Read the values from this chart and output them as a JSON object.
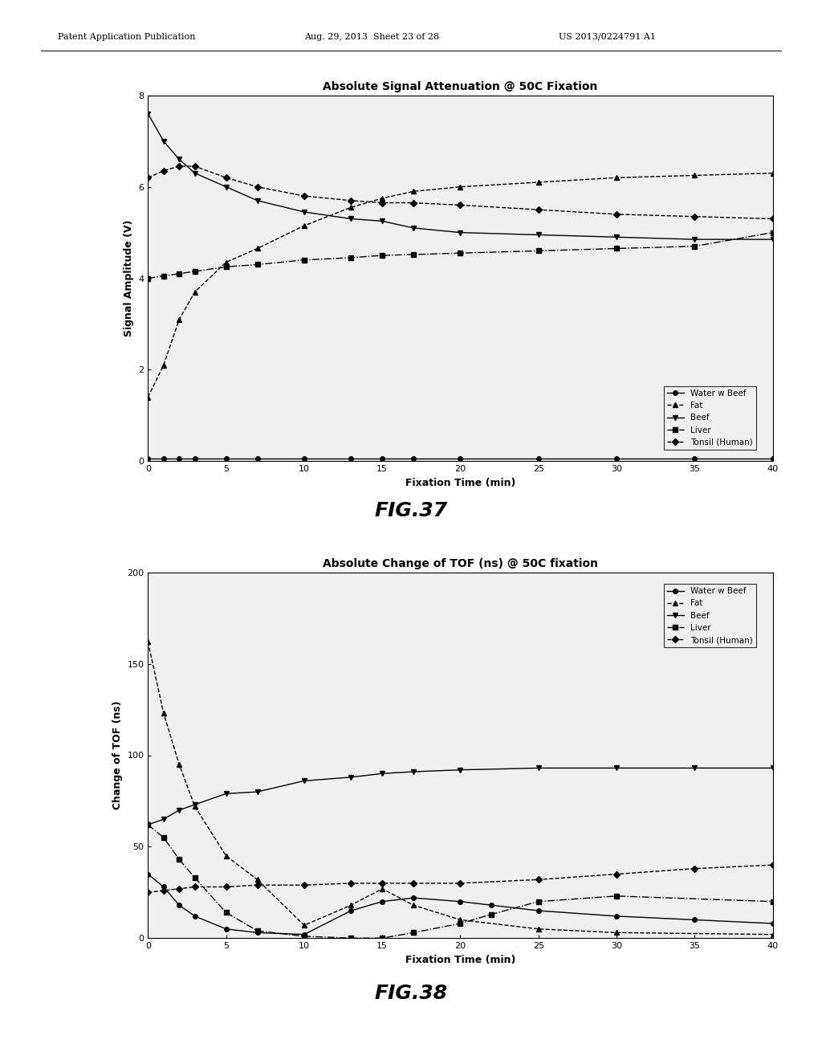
{
  "fig37": {
    "title": "Absolute Signal Attenuation @ 50C Fixation",
    "xlabel": "Fixation Time (min)",
    "ylabel": "Signal Amplitude (V)",
    "xlim": [
      0,
      40
    ],
    "ylim": [
      0,
      8
    ],
    "yticks": [
      0,
      2,
      4,
      6,
      8
    ],
    "xticks": [
      0,
      5,
      10,
      15,
      20,
      25,
      30,
      35,
      40
    ],
    "series": {
      "water_w_beef": {
        "label": "Water w Beef",
        "linestyle": "-",
        "marker": "o",
        "x": [
          0,
          1,
          2,
          3,
          5,
          7,
          10,
          13,
          15,
          17,
          20,
          25,
          30,
          35,
          40
        ],
        "y": [
          0.05,
          0.05,
          0.05,
          0.05,
          0.05,
          0.05,
          0.05,
          0.05,
          0.05,
          0.05,
          0.05,
          0.05,
          0.05,
          0.05,
          0.05
        ]
      },
      "fat": {
        "label": "Fat",
        "linestyle": "--",
        "marker": "^",
        "x": [
          0,
          1,
          2,
          3,
          5,
          7,
          10,
          13,
          15,
          17,
          20,
          25,
          30,
          35,
          40
        ],
        "y": [
          1.4,
          2.1,
          3.1,
          3.7,
          4.35,
          4.65,
          5.15,
          5.55,
          5.75,
          5.9,
          6.0,
          6.1,
          6.2,
          6.25,
          6.3
        ]
      },
      "beef": {
        "label": "Beef",
        "linestyle": "-",
        "marker": "v",
        "x": [
          0,
          1,
          2,
          3,
          5,
          7,
          10,
          13,
          15,
          17,
          20,
          25,
          30,
          35,
          40
        ],
        "y": [
          7.6,
          7.0,
          6.6,
          6.3,
          6.0,
          5.7,
          5.45,
          5.3,
          5.25,
          5.1,
          5.0,
          4.95,
          4.9,
          4.85,
          4.85
        ]
      },
      "liver": {
        "label": "Liver",
        "linestyle": "-.",
        "marker": "s",
        "x": [
          0,
          1,
          2,
          3,
          5,
          7,
          10,
          13,
          15,
          17,
          20,
          25,
          30,
          35,
          40
        ],
        "y": [
          4.0,
          4.05,
          4.1,
          4.15,
          4.25,
          4.3,
          4.4,
          4.45,
          4.5,
          4.52,
          4.55,
          4.6,
          4.65,
          4.7,
          5.0
        ]
      },
      "tonsil": {
        "label": "Tonsil (Human)",
        "linestyle": "--",
        "marker": "D",
        "x": [
          0,
          1,
          2,
          3,
          5,
          7,
          10,
          13,
          15,
          17,
          20,
          25,
          30,
          35,
          40
        ],
        "y": [
          6.2,
          6.35,
          6.45,
          6.45,
          6.2,
          6.0,
          5.8,
          5.7,
          5.65,
          5.65,
          5.6,
          5.5,
          5.4,
          5.35,
          5.3
        ]
      }
    }
  },
  "fig38": {
    "title": "Absolute Change of TOF (ns) @ 50C fixation",
    "xlabel": "Fixation Time (min)",
    "ylabel": "Change of TOF (ns)",
    "xlim": [
      0,
      40
    ],
    "ylim": [
      0,
      200
    ],
    "yticks": [
      0,
      50,
      100,
      150,
      200
    ],
    "xticks": [
      0,
      5,
      10,
      15,
      20,
      25,
      30,
      35,
      40
    ],
    "series": {
      "water_w_beef": {
        "label": "Water w Beef",
        "linestyle": "-",
        "marker": "o",
        "x": [
          0,
          1,
          2,
          3,
          5,
          7,
          10,
          13,
          15,
          17,
          20,
          22,
          25,
          30,
          35,
          40
        ],
        "y": [
          35,
          28,
          18,
          12,
          5,
          3,
          2,
          15,
          20,
          22,
          20,
          18,
          15,
          12,
          10,
          8
        ]
      },
      "fat": {
        "label": "Fat",
        "linestyle": "--",
        "marker": "^",
        "x": [
          0,
          1,
          2,
          3,
          5,
          7,
          10,
          13,
          15,
          17,
          20,
          25,
          30,
          40
        ],
        "y": [
          162,
          123,
          95,
          72,
          45,
          32,
          7,
          18,
          27,
          18,
          10,
          5,
          3,
          2
        ]
      },
      "beef": {
        "label": "Beef",
        "linestyle": "-",
        "marker": "v",
        "x": [
          0,
          1,
          2,
          3,
          5,
          7,
          10,
          13,
          15,
          17,
          20,
          25,
          30,
          35,
          40
        ],
        "y": [
          62,
          65,
          70,
          73,
          79,
          80,
          86,
          88,
          90,
          91,
          92,
          93,
          93,
          93,
          93
        ]
      },
      "liver": {
        "label": "Liver",
        "linestyle": "-.",
        "marker": "s",
        "x": [
          0,
          1,
          2,
          3,
          5,
          7,
          10,
          13,
          15,
          17,
          20,
          22,
          25,
          30,
          40
        ],
        "y": [
          62,
          55,
          43,
          33,
          14,
          4,
          1,
          0,
          0,
          3,
          8,
          13,
          20,
          23,
          20
        ]
      },
      "tonsil": {
        "label": "Tonsil (Human)",
        "linestyle": "--",
        "marker": "D",
        "x": [
          0,
          1,
          2,
          3,
          5,
          7,
          10,
          13,
          15,
          17,
          20,
          25,
          30,
          35,
          40
        ],
        "y": [
          25,
          26,
          27,
          28,
          28,
          29,
          29,
          30,
          30,
          30,
          30,
          32,
          35,
          38,
          40
        ]
      }
    }
  },
  "header": {
    "left": "Patent Application Publication",
    "middle": "Aug. 29, 2013  Sheet 23 of 28",
    "right": "US 2013/0224791 A1"
  },
  "fig37_label": "FIG.37",
  "fig38_label": "FIG.38",
  "bg_color": "#ffffff",
  "plot_bg_color": "#f0f0f0",
  "font_size": 9,
  "title_font_size": 10,
  "label_font_size": 9
}
